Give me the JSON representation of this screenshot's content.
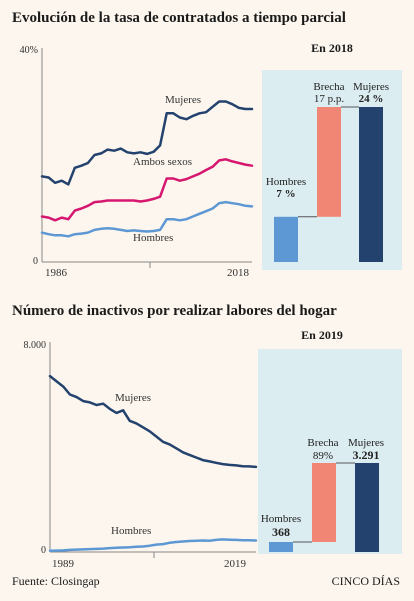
{
  "titles": {
    "top": "Evolución de la tasa de contratados a tiempo parcial",
    "bottom": "Número de inactivos por realizar labores del hogar"
  },
  "footer": {
    "source": "Fuente: Closingap",
    "brand": "CINCO DÍAS"
  },
  "colors": {
    "mujeres": "#24426e",
    "ambos": "#d6176f",
    "hombres": "#5d98d4",
    "brecha": "#f28674",
    "panel": "#dcedf1",
    "axis": "#888888"
  },
  "chart_data": [
    {
      "type": "line",
      "x": [
        1986,
        1987,
        1988,
        1989,
        1990,
        1991,
        1992,
        1993,
        1994,
        1995,
        1996,
        1997,
        1998,
        1999,
        2000,
        2001,
        2002,
        2003,
        2004,
        2005,
        2006,
        2007,
        2008,
        2009,
        2010,
        2011,
        2012,
        2013,
        2014,
        2015,
        2016,
        2017,
        2018
      ],
      "xticks": [
        "1986",
        "2018"
      ],
      "yticks": [
        "0",
        "40%"
      ],
      "ylim": [
        0,
        40
      ],
      "series": [
        {
          "name": "Mujeres",
          "values": [
            16.0,
            15.8,
            14.8,
            15.2,
            14.5,
            17.6,
            18.0,
            18.5,
            20.0,
            20.3,
            21.0,
            20.8,
            21.2,
            20.5,
            20.3,
            20.5,
            20.2,
            20.6,
            21.8,
            27.8,
            27.8,
            27.0,
            26.7,
            27.3,
            27.8,
            28.0,
            29.0,
            30.0,
            30.0,
            29.5,
            28.8,
            28.6,
            28.6
          ]
        },
        {
          "name": "Ambos sexos",
          "values": [
            8.5,
            8.3,
            7.8,
            8.3,
            8.0,
            9.6,
            10.0,
            10.5,
            11.2,
            11.3,
            11.5,
            11.5,
            11.5,
            11.5,
            11.5,
            11.3,
            11.5,
            11.8,
            12.2,
            15.6,
            15.6,
            15.2,
            15.5,
            16.0,
            16.5,
            17.2,
            17.8,
            19.0,
            19.2,
            18.8,
            18.5,
            18.2,
            18.0
          ]
        },
        {
          "name": "Hombres",
          "values": [
            5.5,
            5.2,
            5.0,
            5.0,
            4.8,
            5.2,
            5.3,
            5.5,
            6.0,
            6.2,
            6.3,
            6.2,
            6.0,
            5.8,
            5.9,
            5.8,
            5.7,
            5.8,
            6.0,
            8.0,
            8.0,
            7.8,
            8.0,
            8.5,
            9.0,
            9.5,
            10.0,
            11.0,
            11.2,
            11.0,
            10.8,
            10.5,
            10.4
          ]
        }
      ],
      "line_labels": [
        "Mujeres",
        "Ambos sexos",
        "Hombres"
      ]
    },
    {
      "type": "bar",
      "subtype": "waterfall",
      "title": "En 2018",
      "categories": [
        "Hombres",
        "Brecha",
        "Mujeres"
      ],
      "values": [
        7,
        17,
        24
      ],
      "labels": {
        "hombres_name": "Hombres",
        "hombres_value": "7 %",
        "brecha_name": "Brecha",
        "brecha_value": "17 p.p.",
        "mujeres_name": "Mujeres",
        "mujeres_value": "24 %"
      }
    },
    {
      "type": "line",
      "x": [
        1989,
        1990,
        1991,
        1992,
        1993,
        1994,
        1995,
        1996,
        1997,
        1998,
        1999,
        2000,
        2001,
        2002,
        2003,
        2004,
        2005,
        2006,
        2007,
        2008,
        2009,
        2010,
        2011,
        2012,
        2013,
        2014,
        2015,
        2016,
        2017,
        2018,
        2019,
        2020
      ],
      "xticks": [
        "1989",
        "2019"
      ],
      "yticks": [
        "0",
        "8.000"
      ],
      "ylim": [
        0,
        8000
      ],
      "series": [
        {
          "name": "Mujeres",
          "values": [
            6700,
            6500,
            6300,
            6000,
            5900,
            5750,
            5700,
            5600,
            5650,
            5450,
            5300,
            5400,
            5000,
            4900,
            4750,
            4600,
            4400,
            4200,
            4100,
            3950,
            3800,
            3700,
            3600,
            3500,
            3450,
            3400,
            3350,
            3320,
            3300,
            3270,
            3260,
            3240
          ]
        },
        {
          "name": "Hombres",
          "values": [
            50,
            55,
            60,
            80,
            90,
            100,
            110,
            120,
            130,
            150,
            160,
            170,
            180,
            200,
            210,
            240,
            280,
            300,
            350,
            380,
            400,
            420,
            430,
            440,
            430,
            460,
            480,
            470,
            460,
            450,
            450,
            440
          ]
        }
      ],
      "line_labels": [
        "Mujeres",
        "Hombres"
      ]
    },
    {
      "type": "bar",
      "subtype": "waterfall",
      "title": "En 2019",
      "categories": [
        "Hombres",
        "Brecha",
        "Mujeres"
      ],
      "values": [
        368,
        2923,
        3291
      ],
      "labels": {
        "hombres_name": "Hombres",
        "hombres_value": "368",
        "brecha_name": "Brecha",
        "brecha_value": "89%",
        "mujeres_name": "Mujeres",
        "mujeres_value": "3.291"
      }
    }
  ]
}
